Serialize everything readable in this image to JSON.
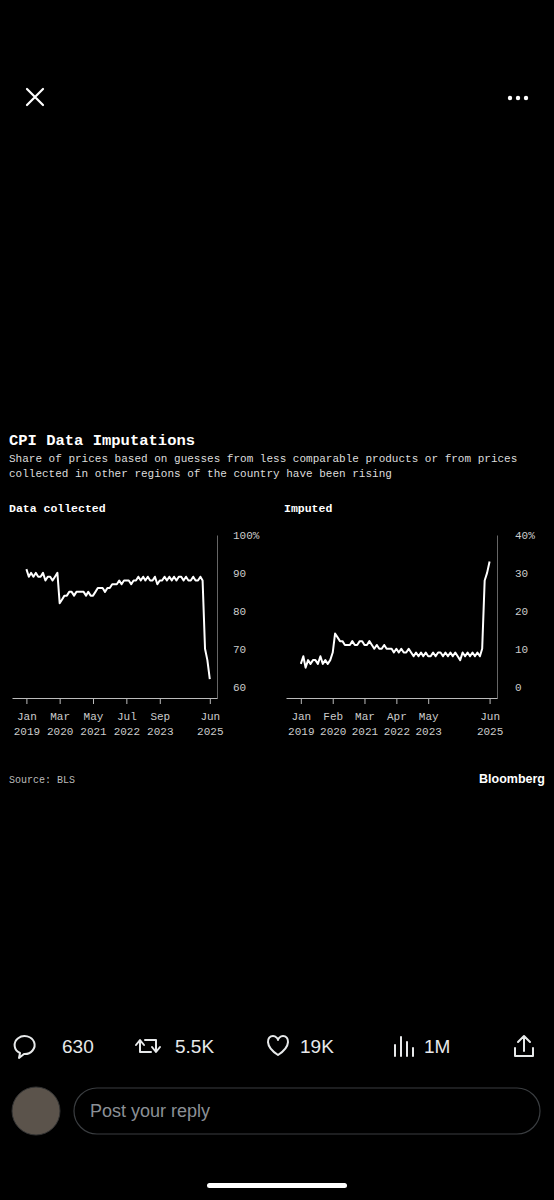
{
  "panel": {
    "title": "CPI Data Imputations",
    "subtitle": "Share of prices based on guesses from less comparable products or from prices collected in other regions of the country have been rising",
    "source": "Source: BLS",
    "brand": "Bloomberg"
  },
  "chart_data": [
    {
      "type": "line",
      "title": "Data collected",
      "color": "#ffffff",
      "grid": false,
      "x": [
        "2019-01",
        "2019-02",
        "2019-03",
        "2019-04",
        "2019-05",
        "2019-06",
        "2019-07",
        "2019-08",
        "2019-09",
        "2019-10",
        "2019-11",
        "2019-12",
        "2020-01",
        "2020-02",
        "2020-03",
        "2020-04",
        "2020-05",
        "2020-06",
        "2020-07",
        "2020-08",
        "2020-09",
        "2020-10",
        "2020-11",
        "2020-12",
        "2021-01",
        "2021-02",
        "2021-03",
        "2021-04",
        "2021-05",
        "2021-06",
        "2021-07",
        "2021-08",
        "2021-09",
        "2021-10",
        "2021-11",
        "2021-12",
        "2022-01",
        "2022-02",
        "2022-03",
        "2022-04",
        "2022-05",
        "2022-06",
        "2022-07",
        "2022-08",
        "2022-09",
        "2022-10",
        "2022-11",
        "2022-12",
        "2023-01",
        "2023-02",
        "2023-03",
        "2023-04",
        "2023-05",
        "2023-06",
        "2023-07",
        "2023-08",
        "2023-09",
        "2023-10",
        "2023-11",
        "2023-12",
        "2024-01",
        "2024-02",
        "2024-03",
        "2024-04",
        "2024-05",
        "2024-06",
        "2024-07",
        "2024-08",
        "2024-09",
        "2024-10",
        "2024-11",
        "2024-12",
        "2025-01",
        "2025-02",
        "2025-03",
        "2025-04",
        "2025-05",
        "2025-06"
      ],
      "values": [
        91,
        89,
        90,
        89,
        90,
        89,
        89,
        90,
        88,
        89,
        89,
        88,
        89,
        90,
        82,
        83,
        84,
        84,
        85,
        85,
        84,
        85,
        85,
        85,
        85,
        84,
        85,
        84,
        84,
        85,
        86,
        86,
        86,
        85,
        86,
        86,
        87,
        87,
        87,
        88,
        87,
        88,
        88,
        88,
        87,
        88,
        88,
        89,
        88,
        89,
        88,
        89,
        88,
        88,
        89,
        87,
        88,
        88,
        89,
        88,
        89,
        88,
        89,
        88,
        89,
        89,
        88,
        89,
        88,
        88,
        89,
        88,
        88,
        89,
        88,
        70,
        67,
        62
      ],
      "xlim": [
        "2018-07",
        "2025-09"
      ],
      "xticks": [
        {
          "value": "2019-01",
          "label": "Jan 2019"
        },
        {
          "value": "2020-03",
          "label": "Mar 2020"
        },
        {
          "value": "2021-05",
          "label": "May 2021"
        },
        {
          "value": "2022-07",
          "label": "Jul 2022"
        },
        {
          "value": "2023-09",
          "label": "Sep 2023"
        },
        {
          "value": "2025-06",
          "label": "Jun 2025"
        }
      ],
      "ylim": [
        57,
        100
      ],
      "yticks": [
        {
          "value": 100,
          "label": "100%"
        },
        90,
        80,
        70,
        60
      ]
    },
    {
      "type": "line",
      "title": "Imputed",
      "color": "#ffffff",
      "grid": false,
      "x": [
        "2019-01",
        "2019-02",
        "2019-03",
        "2019-04",
        "2019-05",
        "2019-06",
        "2019-07",
        "2019-08",
        "2019-09",
        "2019-10",
        "2019-11",
        "2019-12",
        "2020-01",
        "2020-02",
        "2020-03",
        "2020-04",
        "2020-05",
        "2020-06",
        "2020-07",
        "2020-08",
        "2020-09",
        "2020-10",
        "2020-11",
        "2020-12",
        "2021-01",
        "2021-02",
        "2021-03",
        "2021-04",
        "2021-05",
        "2021-06",
        "2021-07",
        "2021-08",
        "2021-09",
        "2021-10",
        "2021-11",
        "2021-12",
        "2022-01",
        "2022-02",
        "2022-03",
        "2022-04",
        "2022-05",
        "2022-06",
        "2022-07",
        "2022-08",
        "2022-09",
        "2022-10",
        "2022-11",
        "2022-12",
        "2023-01",
        "2023-02",
        "2023-03",
        "2023-04",
        "2023-05",
        "2023-06",
        "2023-07",
        "2023-08",
        "2023-09",
        "2023-10",
        "2023-11",
        "2023-12",
        "2024-01",
        "2024-02",
        "2024-03",
        "2024-04",
        "2024-05",
        "2024-06",
        "2024-07",
        "2024-08",
        "2024-09",
        "2024-10",
        "2024-11",
        "2024-12",
        "2025-01",
        "2025-02",
        "2025-03",
        "2025-04",
        "2025-05",
        "2025-06"
      ],
      "values": [
        6,
        8,
        5,
        7,
        6,
        7,
        7,
        6,
        8,
        6,
        7,
        6,
        7,
        9,
        14,
        13,
        12,
        12,
        11,
        11,
        11,
        12,
        11,
        11,
        12,
        12,
        11,
        11,
        12,
        11,
        10,
        11,
        10,
        10,
        11,
        10,
        10,
        10,
        9,
        10,
        9,
        10,
        9,
        9,
        10,
        9,
        8,
        9,
        8,
        9,
        8,
        9,
        8,
        8,
        9,
        8,
        9,
        9,
        8,
        9,
        8,
        9,
        8,
        9,
        8,
        7,
        9,
        8,
        9,
        8,
        9,
        8,
        9,
        8,
        10,
        28,
        30,
        33
      ],
      "xlim": [
        "2018-07",
        "2025-09"
      ],
      "xticks": [
        {
          "value": "2019-01",
          "label": "Jan 2019"
        },
        {
          "value": "2020-02",
          "label": "Feb 2020"
        },
        {
          "value": "2021-03",
          "label": "Mar 2021"
        },
        {
          "value": "2022-04",
          "label": "Apr 2022"
        },
        {
          "value": "2023-05",
          "label": "May 2023"
        },
        {
          "value": "2025-06",
          "label": "Jun 2025"
        }
      ],
      "ylim": [
        -3,
        40
      ],
      "yticks": [
        {
          "value": 40,
          "label": "40%"
        },
        30,
        20,
        10,
        0
      ]
    }
  ],
  "post_actions": {
    "replies": "630",
    "reposts": "5.5K",
    "likes": "19K",
    "views": "1M"
  },
  "reply_box": {
    "placeholder": "Post your reply"
  }
}
